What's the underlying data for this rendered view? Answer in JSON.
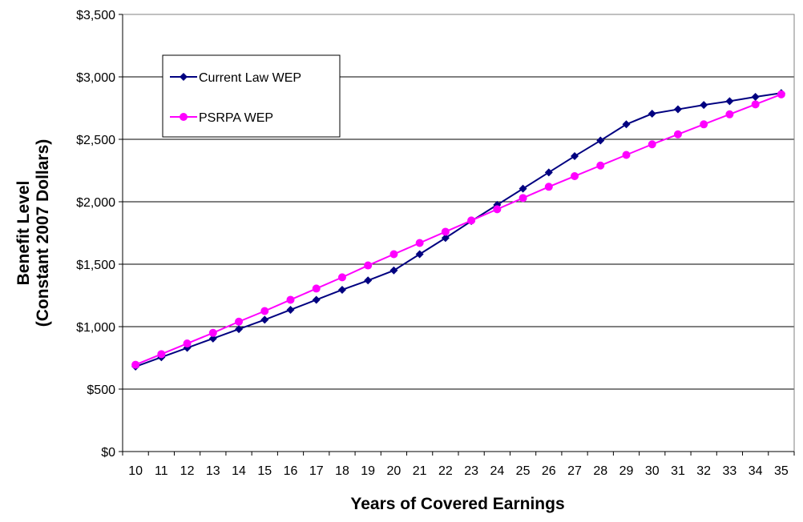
{
  "chart_data": {
    "type": "line",
    "title": "",
    "xlabel": "Years of Covered Earnings",
    "ylabel_line1": "Benefit Level",
    "ylabel_line2": "(Constant 2007 Dollars)",
    "x": [
      10,
      11,
      12,
      13,
      14,
      15,
      16,
      17,
      18,
      19,
      20,
      21,
      22,
      23,
      24,
      25,
      26,
      27,
      28,
      29,
      30,
      31,
      32,
      33,
      34,
      35
    ],
    "ylim": [
      0,
      3500
    ],
    "y_ticks": [
      0,
      500,
      1000,
      1500,
      2000,
      2500,
      3000,
      3500
    ],
    "y_tick_labels": [
      "$0",
      "$500",
      "$1,000",
      "$1,500",
      "$2,000",
      "$2,500",
      "$3,000",
      "$3,500"
    ],
    "grid": "horizontal",
    "legend_position": "top-left",
    "series": [
      {
        "name": "Current Law WEP",
        "color": "#000080",
        "marker": "diamond",
        "values": [
          680,
          755,
          830,
          905,
          980,
          1055,
          1135,
          1215,
          1295,
          1370,
          1450,
          1580,
          1710,
          1845,
          1975,
          2105,
          2235,
          2365,
          2490,
          2620,
          2705,
          2740,
          2775,
          2805,
          2840,
          2870
        ]
      },
      {
        "name": "PSRPA WEP",
        "color": "#FF00FF",
        "marker": "circle",
        "values": [
          695,
          780,
          865,
          950,
          1040,
          1125,
          1215,
          1305,
          1395,
          1490,
          1580,
          1670,
          1760,
          1850,
          1940,
          2030,
          2120,
          2205,
          2290,
          2375,
          2460,
          2540,
          2620,
          2700,
          2780,
          2860
        ]
      }
    ]
  }
}
